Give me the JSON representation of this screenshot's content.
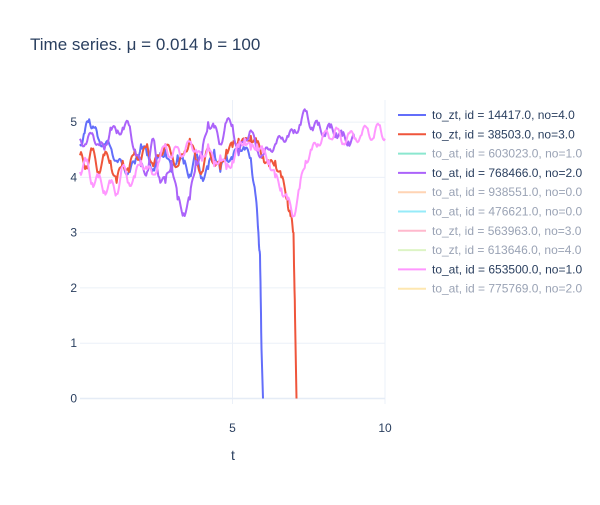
{
  "chart_data": {
    "type": "line",
    "title": "Time series. μ = 0.014 b = 100",
    "xlabel": "t",
    "ylabel": "",
    "xlim": [
      0,
      10
    ],
    "ylim": [
      -0.1,
      5.4
    ],
    "x_ticks": [
      5,
      10
    ],
    "y_ticks": [
      0,
      1,
      2,
      3,
      4,
      5
    ],
    "grid": true,
    "legend_position": "right",
    "series": [
      {
        "name": "to_zt, id = 14417.0, no=4.0",
        "color": "#636efa",
        "visible": true,
        "x": [
          0,
          0.15,
          0.3,
          0.45,
          0.6,
          0.8,
          1.0,
          1.2,
          1.4,
          1.6,
          1.8,
          2.0,
          2.2,
          2.4,
          2.6,
          2.8,
          3.0,
          3.2,
          3.4,
          3.6,
          3.8,
          4.0,
          4.2,
          4.4,
          4.6,
          4.8,
          5.0,
          5.2,
          5.4,
          5.6,
          5.75,
          5.85,
          5.9,
          5.95,
          6.0
        ],
        "y": [
          4.6,
          4.8,
          5.05,
          4.9,
          4.7,
          4.6,
          4.55,
          4.3,
          4.2,
          4.1,
          4.25,
          4.6,
          4.4,
          4.15,
          4.35,
          4.5,
          4.1,
          4.4,
          4.25,
          4.05,
          4.4,
          4.0,
          4.15,
          4.5,
          4.1,
          4.4,
          4.3,
          4.6,
          4.5,
          4.35,
          3.7,
          3.0,
          2.6,
          0.9,
          0.0
        ]
      },
      {
        "name": "to_zt, id = 38503.0, no=3.0",
        "color": "#ef553b",
        "visible": true,
        "x": [
          0,
          0.2,
          0.4,
          0.6,
          0.8,
          1.0,
          1.2,
          1.4,
          1.6,
          1.8,
          2.0,
          2.2,
          2.4,
          2.6,
          2.8,
          3.0,
          3.2,
          3.4,
          3.6,
          3.8,
          4.0,
          4.2,
          4.4,
          4.6,
          4.8,
          5.0,
          5.2,
          5.4,
          5.6,
          5.8,
          6.0,
          6.2,
          6.4,
          6.6,
          6.8,
          6.9,
          7.0,
          7.05,
          7.1
        ],
        "y": [
          4.4,
          4.2,
          4.5,
          4.1,
          4.4,
          4.3,
          3.9,
          4.3,
          4.1,
          4.5,
          4.3,
          4.6,
          4.2,
          4.4,
          4.6,
          4.4,
          4.2,
          4.4,
          4.7,
          4.3,
          4.1,
          4.5,
          4.3,
          4.15,
          4.5,
          4.55,
          4.7,
          4.6,
          4.75,
          4.6,
          4.4,
          4.2,
          4.3,
          4.0,
          3.6,
          3.3,
          3.0,
          1.5,
          0.0
        ]
      },
      {
        "name": "to_at, id = 603023.0, no=1.0",
        "color": "#00cc96",
        "visible": false
      },
      {
        "name": "to_at, id = 768466.0, no=2.0",
        "color": "#ab63fa",
        "visible": true,
        "x": [
          0,
          0.2,
          0.4,
          0.6,
          0.8,
          1.0,
          1.2,
          1.4,
          1.6,
          1.8,
          2.0,
          2.2,
          2.4,
          2.6,
          2.8,
          3.0,
          3.2,
          3.4,
          3.6,
          3.8,
          4.0,
          4.2,
          4.4,
          4.6,
          4.8,
          5.0,
          5.2,
          5.4,
          5.6,
          5.8,
          6.0,
          6.2,
          6.4,
          6.6,
          6.8,
          7.0,
          7.2,
          7.4,
          7.6,
          7.8,
          8.0,
          8.2,
          8.4,
          8.6,
          8.8,
          9.0
        ],
        "y": [
          4.7,
          4.6,
          4.8,
          4.6,
          4.5,
          4.9,
          4.8,
          4.9,
          4.95,
          4.5,
          4.2,
          4.1,
          4.7,
          4.0,
          3.9,
          4.3,
          3.6,
          3.35,
          3.6,
          4.3,
          4.4,
          5.0,
          4.9,
          4.6,
          5.0,
          4.95,
          4.4,
          4.7,
          4.85,
          4.5,
          4.4,
          4.5,
          4.6,
          4.7,
          4.75,
          4.8,
          4.95,
          5.2,
          4.9,
          4.95,
          4.8,
          4.9,
          4.8,
          4.75,
          4.65,
          4.7
        ]
      },
      {
        "name": "to_at, id = 938551.0, no=0.0",
        "color": "#ffa15a",
        "visible": false
      },
      {
        "name": "to_at, id = 476621.0, no=0.0",
        "color": "#19d3f3",
        "visible": false
      },
      {
        "name": "to_zt, id = 563963.0, no=3.0",
        "color": "#ff6692",
        "visible": false
      },
      {
        "name": "to_zt, id = 613646.0, no=4.0",
        "color": "#b6e880",
        "visible": false
      },
      {
        "name": "to_at, id = 653500.0, no=1.0",
        "color": "#ff97ff",
        "visible": true,
        "x": [
          0,
          0.2,
          0.4,
          0.6,
          0.8,
          1.0,
          1.2,
          1.4,
          1.6,
          1.8,
          2.0,
          2.2,
          2.4,
          2.6,
          2.8,
          3.0,
          3.2,
          3.4,
          3.6,
          3.8,
          4.0,
          4.2,
          4.4,
          4.6,
          4.8,
          5.0,
          5.2,
          5.4,
          5.6,
          5.8,
          6.0,
          6.2,
          6.4,
          6.6,
          6.8,
          7.0,
          7.2,
          7.4,
          7.6,
          7.8,
          8.0,
          8.2,
          8.4,
          8.6,
          8.8,
          9.0,
          9.2,
          9.4,
          9.6,
          9.8,
          10.0
        ],
        "y": [
          4.1,
          4.3,
          3.9,
          4.0,
          3.75,
          3.9,
          3.7,
          4.2,
          3.9,
          4.0,
          4.3,
          4.15,
          4.05,
          4.3,
          4.6,
          4.35,
          4.55,
          4.4,
          4.65,
          4.5,
          4.3,
          4.6,
          4.2,
          4.4,
          4.15,
          4.3,
          4.55,
          4.7,
          4.5,
          4.6,
          4.45,
          4.3,
          4.0,
          3.8,
          3.6,
          3.3,
          3.8,
          4.3,
          4.5,
          4.6,
          4.8,
          4.7,
          4.9,
          4.6,
          4.8,
          4.7,
          4.75,
          4.9,
          4.7,
          4.95,
          4.7
        ]
      },
      {
        "name": "to_at, id = 775769.0, no=2.0",
        "color": "#fecb52",
        "visible": false
      }
    ]
  }
}
